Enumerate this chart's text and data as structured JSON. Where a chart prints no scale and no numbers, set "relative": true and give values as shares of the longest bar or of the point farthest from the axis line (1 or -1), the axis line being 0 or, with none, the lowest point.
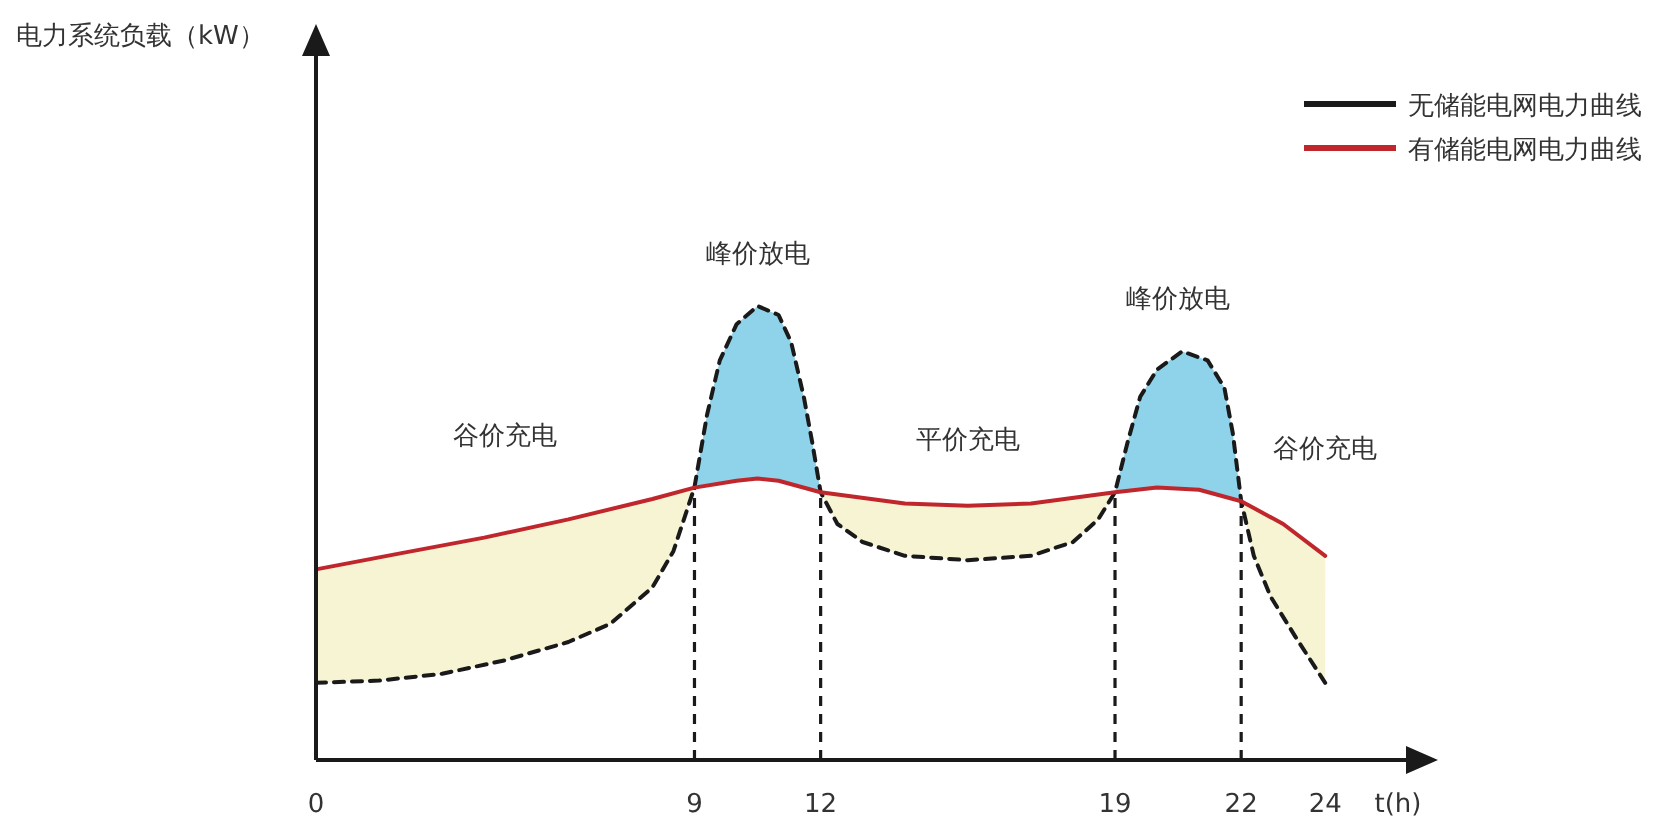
{
  "chart_data": {
    "type": "line",
    "relative": true,
    "xlabel": "t(h)",
    "xlim": [
      0,
      26.3
    ],
    "xticks": [
      0,
      9,
      12,
      19,
      22,
      24
    ],
    "legend": "top right",
    "series": [
      {
        "name": "无储能电网电力曲线",
        "color": "#1a1a1a",
        "line_style": "dashed",
        "x": [
          0,
          1.5,
          3,
          4.5,
          6,
          7,
          8,
          8.5,
          9,
          9.3,
          9.6,
          10,
          10.5,
          11,
          11.3,
          11.6,
          11.8,
          12,
          12.4,
          13,
          14,
          15.5,
          17,
          18,
          18.6,
          19,
          19.3,
          19.6,
          20,
          20.6,
          21.2,
          21.6,
          21.8,
          22,
          22.3,
          22.7,
          23.3,
          24
        ],
        "values": [
          0.17,
          0.175,
          0.19,
          0.22,
          0.26,
          0.3,
          0.38,
          0.46,
          0.6,
          0.76,
          0.88,
          0.96,
          1,
          0.98,
          0.92,
          0.8,
          0.7,
          0.59,
          0.52,
          0.48,
          0.45,
          0.44,
          0.45,
          0.48,
          0.53,
          0.59,
          0.7,
          0.8,
          0.86,
          0.9,
          0.88,
          0.82,
          0.72,
          0.57,
          0.45,
          0.36,
          0.27,
          0.17
        ]
      },
      {
        "name": "有储能电网电力曲线",
        "color": "#c0272d",
        "line_style": "solid",
        "x": [
          0,
          2,
          4,
          6,
          8,
          9,
          10,
          10.5,
          11,
          12,
          14,
          15.5,
          17,
          19,
          20,
          21,
          22,
          23,
          24
        ],
        "values": [
          0.42,
          0.455,
          0.49,
          0.53,
          0.575,
          0.6,
          0.615,
          0.62,
          0.615,
          0.59,
          0.565,
          0.56,
          0.565,
          0.59,
          0.6,
          0.595,
          0.57,
          0.52,
          0.45
        ]
      }
    ],
    "ref_lines": [
      {
        "axis": "x",
        "value": 9,
        "color": "#1a1a1a",
        "line_style": "dashed"
      },
      {
        "axis": "x",
        "value": 12,
        "color": "#1a1a1a",
        "line_style": "dashed"
      },
      {
        "axis": "x",
        "value": 19,
        "color": "#1a1a1a",
        "line_style": "dashed"
      },
      {
        "axis": "x",
        "value": 22,
        "color": "#1a1a1a",
        "line_style": "dashed"
      }
    ],
    "annotations": [
      "电力系统负载（kW）",
      "谷价充电",
      "峰价放电",
      "平价充电",
      "峰价放电",
      "谷价充电"
    ]
  }
}
